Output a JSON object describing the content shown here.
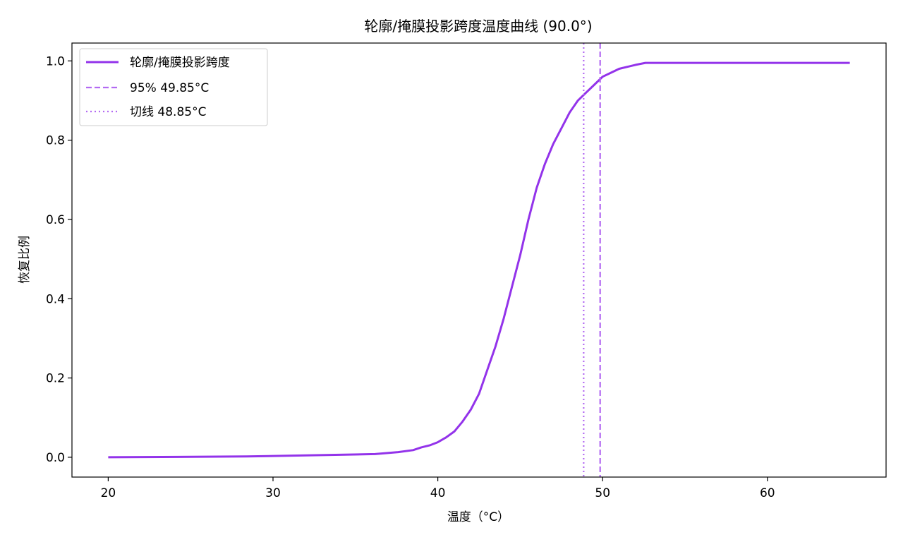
{
  "chart_data": {
    "type": "line",
    "title": "轮廓/掩膜投影跨度温度曲线 (90.0°)",
    "xlabel": "温度（°C）",
    "ylabel": "恢复比例",
    "xlim": [
      17.8,
      67.2
    ],
    "ylim": [
      -0.05,
      1.045
    ],
    "xticks": [
      20,
      30,
      40,
      50,
      60
    ],
    "yticks": [
      0.0,
      0.2,
      0.4,
      0.6,
      0.8,
      1.0
    ],
    "xtick_labels": [
      "20",
      "30",
      "40",
      "50",
      "60"
    ],
    "ytick_labels": [
      "0.0",
      "0.2",
      "0.4",
      "0.6",
      "0.8",
      "1.0"
    ],
    "grid": false,
    "legend_position": "top-left",
    "colors": {
      "series": "#9333ea",
      "vline95": "#b36af2",
      "vlinetan": "#b36af2"
    },
    "series": [
      {
        "name": "轮廓/掩膜投影跨度",
        "style": "solid",
        "x": [
          20,
          28.4,
          36.2,
          37.6,
          38.5,
          39.0,
          39.5,
          40.0,
          40.5,
          41.0,
          41.5,
          42.0,
          42.5,
          43.0,
          43.5,
          44.0,
          44.5,
          45.0,
          45.5,
          46.0,
          46.5,
          47.0,
          47.5,
          48.0,
          48.5,
          49.0,
          49.5,
          50.0,
          50.5,
          51.0,
          51.5,
          52.0,
          52.6,
          65.0
        ],
        "y": [
          0.0,
          0.002,
          0.008,
          0.013,
          0.018,
          0.025,
          0.03,
          0.038,
          0.05,
          0.065,
          0.09,
          0.12,
          0.16,
          0.22,
          0.28,
          0.35,
          0.43,
          0.51,
          0.6,
          0.68,
          0.74,
          0.79,
          0.83,
          0.87,
          0.9,
          0.92,
          0.94,
          0.96,
          0.97,
          0.98,
          0.985,
          0.99,
          0.995,
          0.995
        ]
      }
    ],
    "vlines": [
      {
        "name": "95% 49.85°C",
        "x": 49.85,
        "style": "dashed"
      },
      {
        "name": "切线 48.85°C",
        "x": 48.85,
        "style": "dotted"
      }
    ]
  }
}
